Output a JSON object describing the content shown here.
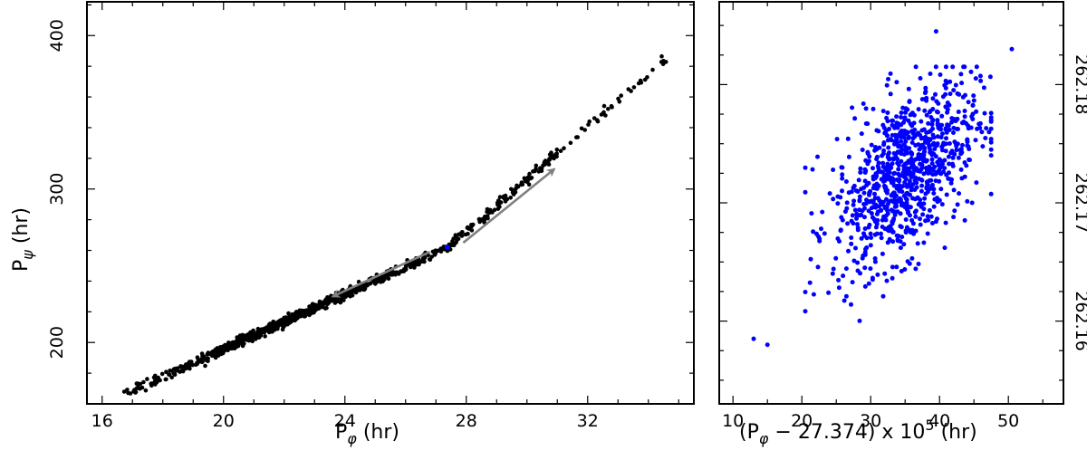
{
  "chart_data": [
    {
      "type": "scatter",
      "title": "",
      "xlabel": {
        "base": "P",
        "subscript": "φ",
        "rest": " (hr)"
      },
      "ylabel": {
        "base": "P",
        "subscript": "ψ",
        "rest": " (hr)"
      },
      "xlim": [
        15.5,
        35.5
      ],
      "ylim": [
        160,
        422
      ],
      "x_ticks": [
        16,
        20,
        24,
        28,
        32
      ],
      "y_ticks": [
        200,
        300,
        400
      ],
      "x_minor_step": 1,
      "y_minor_step": 20,
      "grid": false,
      "series": [
        {
          "color": "#000000",
          "trend": {
            "y_at_16.7": 166,
            "y_at_27.4": 262,
            "y_at_34.8": 388
          },
          "count_approx": 900
        },
        {
          "color": "#0000ff",
          "points": [
            [
              27.37,
              262.17
            ]
          ]
        }
      ],
      "annotations": [
        {
          "type": "arrow",
          "color": "#808080",
          "from": [
            27.9,
            265
          ],
          "to": [
            30.9,
            313
          ]
        },
        {
          "type": "arrow",
          "color": "#808080",
          "from": [
            26.8,
            259
          ],
          "to": [
            23.6,
            230
          ]
        }
      ]
    },
    {
      "type": "scatter",
      "title": "",
      "xlabel": {
        "prefix": "(P",
        "subscript": "φ",
        "middle": " − 27.374) x 10",
        "superscript": "5",
        "rest": " (hr)"
      },
      "ylabel": "",
      "xlim": [
        8,
        58
      ],
      "ylim": [
        262.153,
        262.187
      ],
      "x_ticks": [
        10,
        20,
        30,
        40,
        50
      ],
      "y_ticks": [
        262.16,
        262.17,
        262.18
      ],
      "y_tick_labels": [
        "262.16",
        "262.17",
        "262.18"
      ],
      "y_axis_side": "right",
      "x_minor_step": 5,
      "y_minor_step": 0.0025,
      "grid": false,
      "series": [
        {
          "color": "#0000ff",
          "center": [
            35,
            262.1725
          ],
          "count_approx": 900,
          "extreme_points": [
            [
              13,
              262.1585
            ],
            [
              15,
              262.158
            ],
            [
              39.5,
              262.1845
            ],
            [
              50.5,
              262.183
            ]
          ]
        }
      ]
    }
  ]
}
